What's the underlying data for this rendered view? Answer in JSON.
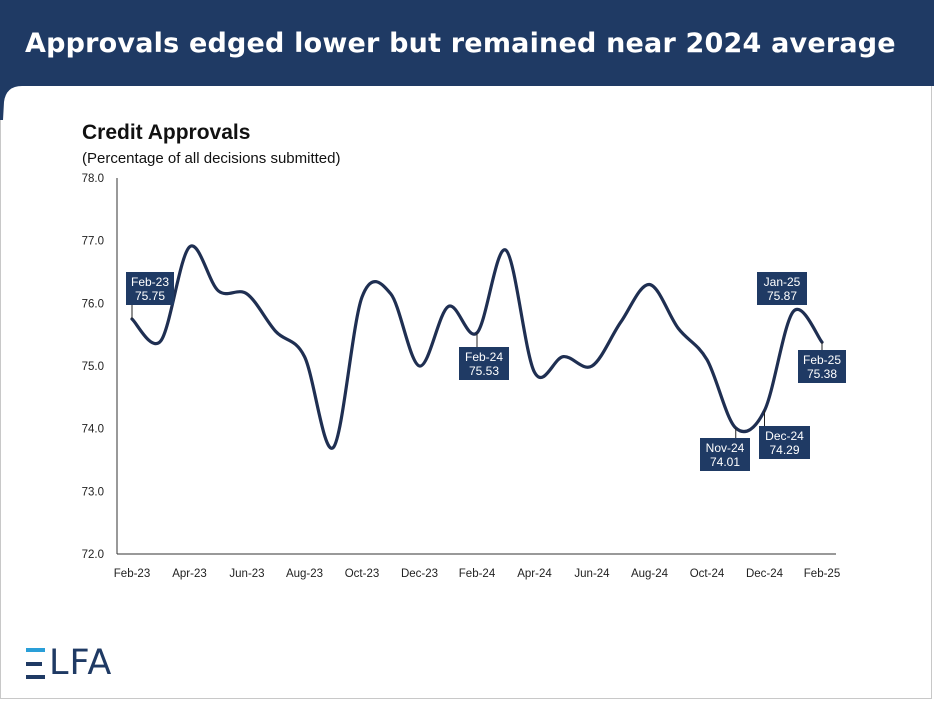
{
  "header": {
    "title": "Approvals edged lower but remained near 2024 average",
    "color": "#1f3a64"
  },
  "logo": {
    "text": "LFA",
    "bar_color": "#2a9fd8",
    "color": "#1f3a64"
  },
  "chart_data": {
    "type": "line",
    "title": "Credit Approvals",
    "subtitle": "(Percentage of all decisions submitted)",
    "xlabel": "",
    "ylabel": "",
    "ylim": [
      72.0,
      78.0
    ],
    "y_ticks": [
      "72.0",
      "73.0",
      "74.0",
      "75.0",
      "76.0",
      "77.0",
      "78.0"
    ],
    "x": [
      "Feb-23",
      "Mar-23",
      "Apr-23",
      "May-23",
      "Jun-23",
      "Jul-23",
      "Aug-23",
      "Sep-23",
      "Oct-23",
      "Nov-23",
      "Dec-23",
      "Jan-24",
      "Feb-24",
      "Mar-24",
      "Apr-24",
      "May-24",
      "Jun-24",
      "Jul-24",
      "Aug-24",
      "Sep-24",
      "Oct-24",
      "Nov-24",
      "Dec-24",
      "Jan-25",
      "Feb-25"
    ],
    "x_tick_labels": [
      "Feb-23",
      "Apr-23",
      "Jun-23",
      "Aug-23",
      "Oct-23",
      "Dec-23",
      "Feb-24",
      "Apr-24",
      "Jun-24",
      "Aug-24",
      "Oct-24",
      "Dec-24",
      "Feb-25"
    ],
    "series": [
      {
        "color": "#1f2f52",
        "values": [
          75.75,
          75.4,
          76.9,
          76.2,
          76.15,
          75.55,
          75.15,
          73.7,
          76.1,
          76.15,
          75.0,
          75.95,
          75.53,
          76.85,
          74.9,
          75.15,
          75.0,
          75.7,
          76.3,
          75.6,
          75.1,
          74.01,
          74.29,
          75.87,
          75.38
        ]
      }
    ],
    "annotations": [
      {
        "label": "Feb-23",
        "value": "75.75"
      },
      {
        "label": "Feb-24",
        "value": "75.53"
      },
      {
        "label": "Nov-24",
        "value": "74.01"
      },
      {
        "label": "Dec-24",
        "value": "74.29"
      },
      {
        "label": "Jan-25",
        "value": "75.87"
      },
      {
        "label": "Feb-25",
        "value": "75.38"
      }
    ],
    "grid": false,
    "legend": "none",
    "annotation_color": "#1f3a64"
  }
}
